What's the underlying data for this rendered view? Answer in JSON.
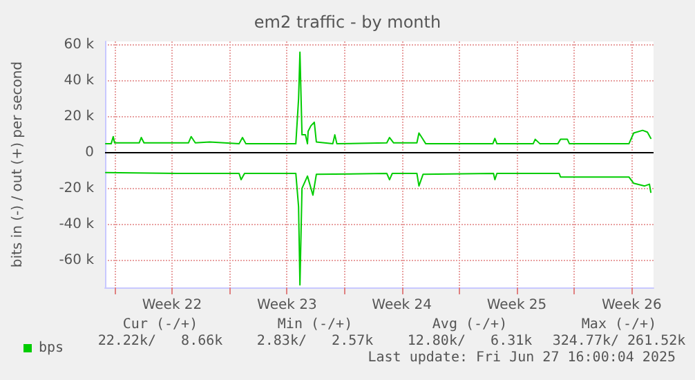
{
  "chart_data": {
    "type": "line",
    "title": "em2 traffic - by month",
    "ylabel": "bits in (-) / out (+) per second",
    "xlim": [
      "2025-05-25T10:00",
      "2025-06-27T20:00"
    ],
    "xticks": [
      {
        "value": "2025-05-26",
        "label": null
      },
      {
        "value": "2025-05-29T12:00",
        "label": "Week 22"
      },
      {
        "value": "2025-06-02",
        "label": null
      },
      {
        "value": "2025-06-05T12:00",
        "label": "Week 23"
      },
      {
        "value": "2025-06-09",
        "label": null
      },
      {
        "value": "2025-06-12T12:00",
        "label": "Week 24"
      },
      {
        "value": "2025-06-16",
        "label": null
      },
      {
        "value": "2025-06-19T12:00",
        "label": "Week 25"
      },
      {
        "value": "2025-06-23",
        "label": null
      },
      {
        "value": "2025-06-26T12:00",
        "label": "Week 26"
      }
    ],
    "ylim": [
      -75000,
      62000
    ],
    "yticks": [
      {
        "value": -60000,
        "label": "-60 k"
      },
      {
        "value": -40000,
        "label": "-40 k"
      },
      {
        "value": -20000,
        "label": "-20 k"
      },
      0,
      {
        "value": 20000,
        "label": "20 k"
      },
      {
        "value": 40000,
        "label": "40 k"
      },
      {
        "value": 60000,
        "label": "60 k"
      }
    ],
    "grid": true,
    "legend": "bottom left",
    "marker": "none",
    "line_style": "solid",
    "ref_lines": [
      {
        "axis": "y",
        "value": 0,
        "label": null,
        "color": "#000000"
      }
    ],
    "series": [
      {
        "name": "bps",
        "color": "#00cc00",
        "x": [
          "2025-05-25T11:00",
          "2025-05-25T19:00",
          "2025-05-25T22:00",
          "2025-05-26T00:00",
          "2025-05-27T12:00",
          "2025-05-27T15:00",
          "2025-05-27T19:00",
          "2025-05-30T12:00",
          "2025-05-30T16:00",
          "2025-05-30T22:00",
          "2025-05-31T19:00",
          "2025-06-02T14:00",
          "2025-06-02T19:00",
          "2025-06-03T00:00",
          "2025-06-05T00:00",
          "2025-06-06T01:00",
          "2025-06-06T05:00",
          "2025-06-06T07:00",
          "2025-06-06T10:00",
          "2025-06-06T15:00",
          "2025-06-06T18:00",
          "2025-06-06T19:00",
          "2025-06-06T23:00",
          "2025-06-07T04:00",
          "2025-06-07T07:00",
          "2025-06-08T07:00",
          "2025-06-08T10:00",
          "2025-06-08T13:00",
          "2025-06-11T14:00",
          "2025-06-11T18:00",
          "2025-06-12T00:00",
          "2025-06-13T10:00",
          "2025-06-13T13:00",
          "2025-06-13T18:00",
          "2025-06-13T23:00",
          "2025-06-18T01:00",
          "2025-06-18T04:00",
          "2025-06-18T07:00",
          "2025-06-20T12:00",
          "2025-06-20T15:00",
          "2025-06-20T22:00",
          "2025-06-22T00:00",
          "2025-06-22T04:00",
          "2025-06-22T14:00",
          "2025-06-22T17:00",
          "2025-06-26T08:00",
          "2025-06-26T15:00",
          "2025-06-27T04:00",
          "2025-06-27T11:00",
          "2025-06-27T16:00"
        ],
        "values": [
          5000,
          5000,
          9000,
          5500,
          5500,
          8500,
          5500,
          5500,
          9000,
          5500,
          6000,
          5000,
          8500,
          5000,
          5000,
          5000,
          30000,
          56000,
          10000,
          10000,
          5000,
          12000,
          15000,
          17000,
          6000,
          5000,
          10000,
          5000,
          5500,
          8500,
          5500,
          5500,
          11000,
          8000,
          5000,
          5000,
          8000,
          5000,
          5000,
          7500,
          5000,
          5000,
          7500,
          7500,
          5000,
          5000,
          11000,
          12500,
          11500,
          8000
        ]
      },
      {
        "color": "#00cc00",
        "x": [
          "2025-05-25T11:00",
          "2025-05-30T00:00",
          "2025-06-02T14:00",
          "2025-06-02T17:00",
          "2025-06-02T22:00",
          "2025-06-06T01:00",
          "2025-06-06T05:00",
          "2025-06-06T07:00",
          "2025-06-06T10:00",
          "2025-06-06T18:00",
          "2025-06-07T02:00",
          "2025-06-07T07:00",
          "2025-06-11T14:00",
          "2025-06-11T18:00",
          "2025-06-11T22:00",
          "2025-06-13T10:00",
          "2025-06-13T13:00",
          "2025-06-13T19:00",
          "2025-06-18T02:00",
          "2025-06-18T04:00",
          "2025-06-18T07:00",
          "2025-06-22T02:00",
          "2025-06-22T04:00",
          "2025-06-26T08:00",
          "2025-06-26T15:00",
          "2025-06-27T07:00",
          "2025-06-27T14:00",
          "2025-06-27T16:00"
        ],
        "values": [
          -11000,
          -11500,
          -11500,
          -15000,
          -11500,
          -11500,
          -30000,
          -73600,
          -19800,
          -13000,
          -23600,
          -12000,
          -11500,
          -15000,
          -11500,
          -11500,
          -18500,
          -12000,
          -11500,
          -15000,
          -11500,
          -11500,
          -13500,
          -13500,
          -17000,
          -18500,
          -17500,
          -22000
        ]
      }
    ],
    "annotations": [
      "Cur (-/+)",
      "Min (-/+)",
      "Avg (-/+)",
      "Max (-/+)",
      "22.22k/   8.66k",
      "2.83k/   2.57k",
      "12.80k/   6.31k",
      "324.77k/ 261.52k",
      "Last update: Fri Jun 27 16:00:04 2025"
    ]
  }
}
